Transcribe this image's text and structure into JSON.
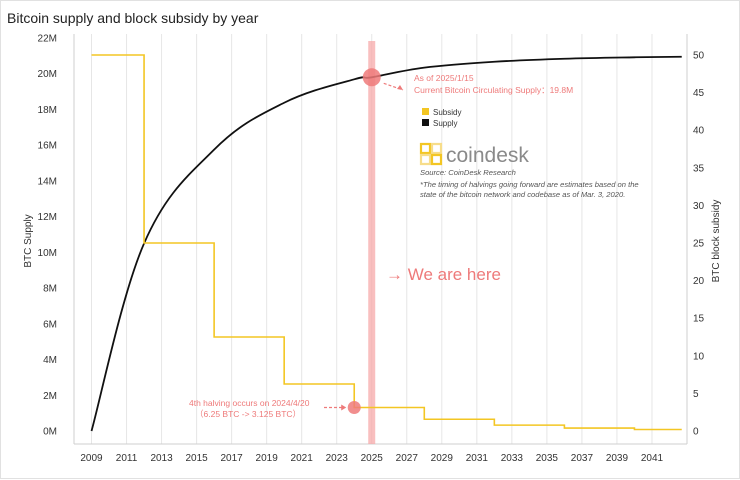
{
  "title": "Bitcoin supply and block subsidy by year",
  "colors": {
    "supply": "#111111",
    "subsidy": "#f3c623",
    "highlight": "#f7a9a9",
    "annotation": "#ee7a7a",
    "grid": "#e6e6e6",
    "logo": "#f3c623"
  },
  "chart_data": {
    "type": "line",
    "title": "Bitcoin supply and block subsidy by year",
    "xlabel": "",
    "ylabel": "BTC Supply",
    "ylabel_right": "BTC block subsidy",
    "x_ticks": [
      "2009",
      "2011",
      "2013",
      "2015",
      "2017",
      "2019",
      "2021",
      "2023",
      "2025",
      "2027",
      "2029",
      "2031",
      "2033",
      "2035",
      "2037",
      "2039",
      "2041"
    ],
    "y_left_ticks": [
      "0M",
      "2M",
      "4M",
      "6M",
      "8M",
      "10M",
      "12M",
      "14M",
      "16M",
      "18M",
      "20M",
      "22M"
    ],
    "y_right_ticks": [
      "0",
      "5",
      "10",
      "15",
      "20",
      "25",
      "30",
      "35",
      "40",
      "45",
      "50"
    ],
    "xlim": [
      2008,
      2043
    ],
    "ylim_left": [
      0,
      22
    ],
    "ylim_right": [
      0,
      50
    ],
    "grid": "x-vertical",
    "legend": {
      "position": "right",
      "entries": [
        "Subsidy",
        "Supply"
      ]
    },
    "series": [
      {
        "name": "Supply",
        "axis": "left",
        "step": false,
        "x": [
          2009,
          2012,
          2016,
          2020,
          2024,
          2025,
          2028,
          2032,
          2036,
          2040,
          2042.7
        ],
        "y": [
          0,
          10.5,
          15.75,
          18.375,
          19.6875,
          19.8,
          20.34,
          20.67,
          20.84,
          20.92,
          20.95
        ]
      },
      {
        "name": "Subsidy",
        "axis": "right",
        "step": true,
        "x": [
          2009,
          2012,
          2016,
          2020,
          2024,
          2028,
          2032,
          2036,
          2040,
          2042.7
        ],
        "y": [
          50,
          25,
          12.5,
          6.25,
          3.125,
          1.5625,
          0.78,
          0.39,
          0.2,
          0.2
        ]
      }
    ],
    "annotations": {
      "current": {
        "x": 2025,
        "y": 19.8,
        "line1": "As of 2025/1/15",
        "line2": "Current Bitcoin Circulating Supply：19.8M"
      },
      "halving": {
        "x": 2024,
        "y": 3.125,
        "line1": "4th halving occurs on 2024/4/20",
        "line2": "（6.25 BTC -> 3.125 BTC）"
      },
      "we_are_here": "→ We are here"
    },
    "logo_text": "coindesk",
    "source": "Source: CoinDesk Research",
    "footnote_line1": "*The timing of halvings going forward are estimates based on the",
    "footnote_line2": "state of the bitcoin network and codebase as of Mar. 3, 2020."
  }
}
